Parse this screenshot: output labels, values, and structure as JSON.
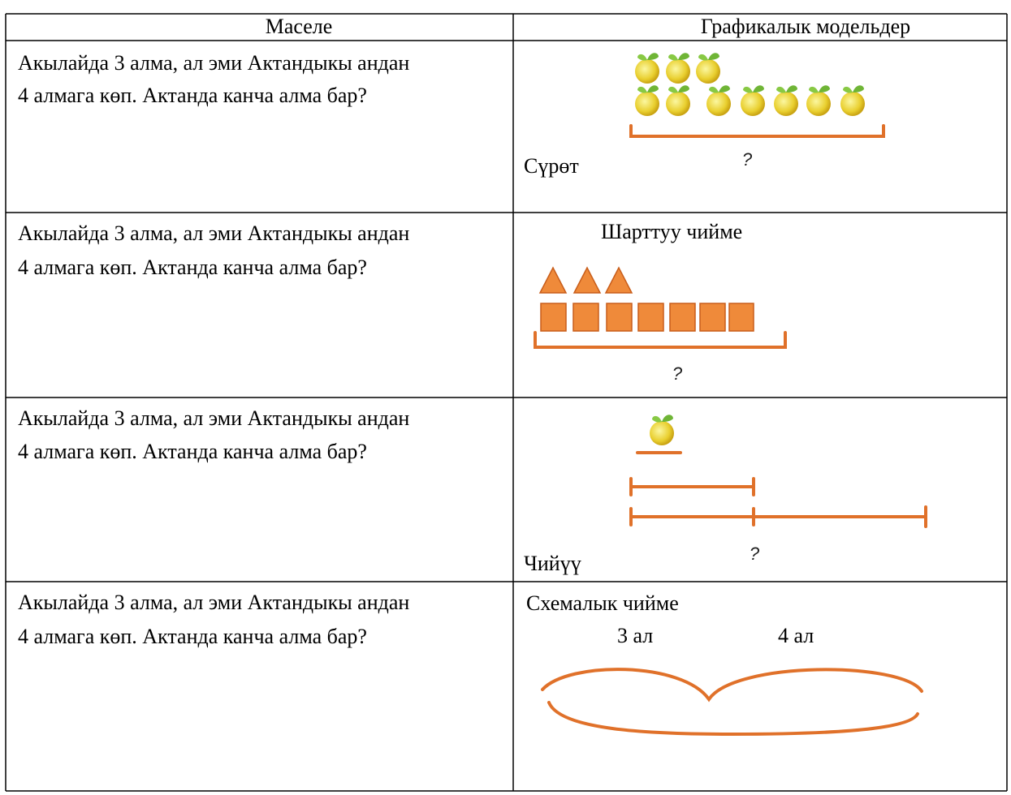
{
  "table": {
    "header": [
      "Маселе",
      "Графикалык модельдер"
    ],
    "rows": [
      {
        "problem": [
          "Акылайда 3 алма, ал эми Актандыкы андан",
          "4 алмага  көп. Актанда канча алма бар?"
        ],
        "model": [
          "Сүрөт",
          "?"
        ]
      },
      {
        "problem": [
          "Акылайда 3 алма, ал эми Актандыкы андан",
          "4 алмага  көп. Актанда канча алма бар?"
        ],
        "model": [
          "Шарттуу чийме",
          "?"
        ]
      },
      {
        "problem": [
          "Акылайда 3 алма, ал эми Актандыкы андан",
          "4 алмага  көп. Актанда канча алма бар?"
        ],
        "model": [
          "Чийүү",
          "?"
        ]
      },
      {
        "problem": [
          "Акылайда 3 алма, ал эми Актандыкы андан",
          "4 алмага  көп. Актанда канча алма бар?"
        ],
        "model": [
          "Схемалык чийме",
          "3 ал",
          "4 ал"
        ]
      }
    ]
  }
}
